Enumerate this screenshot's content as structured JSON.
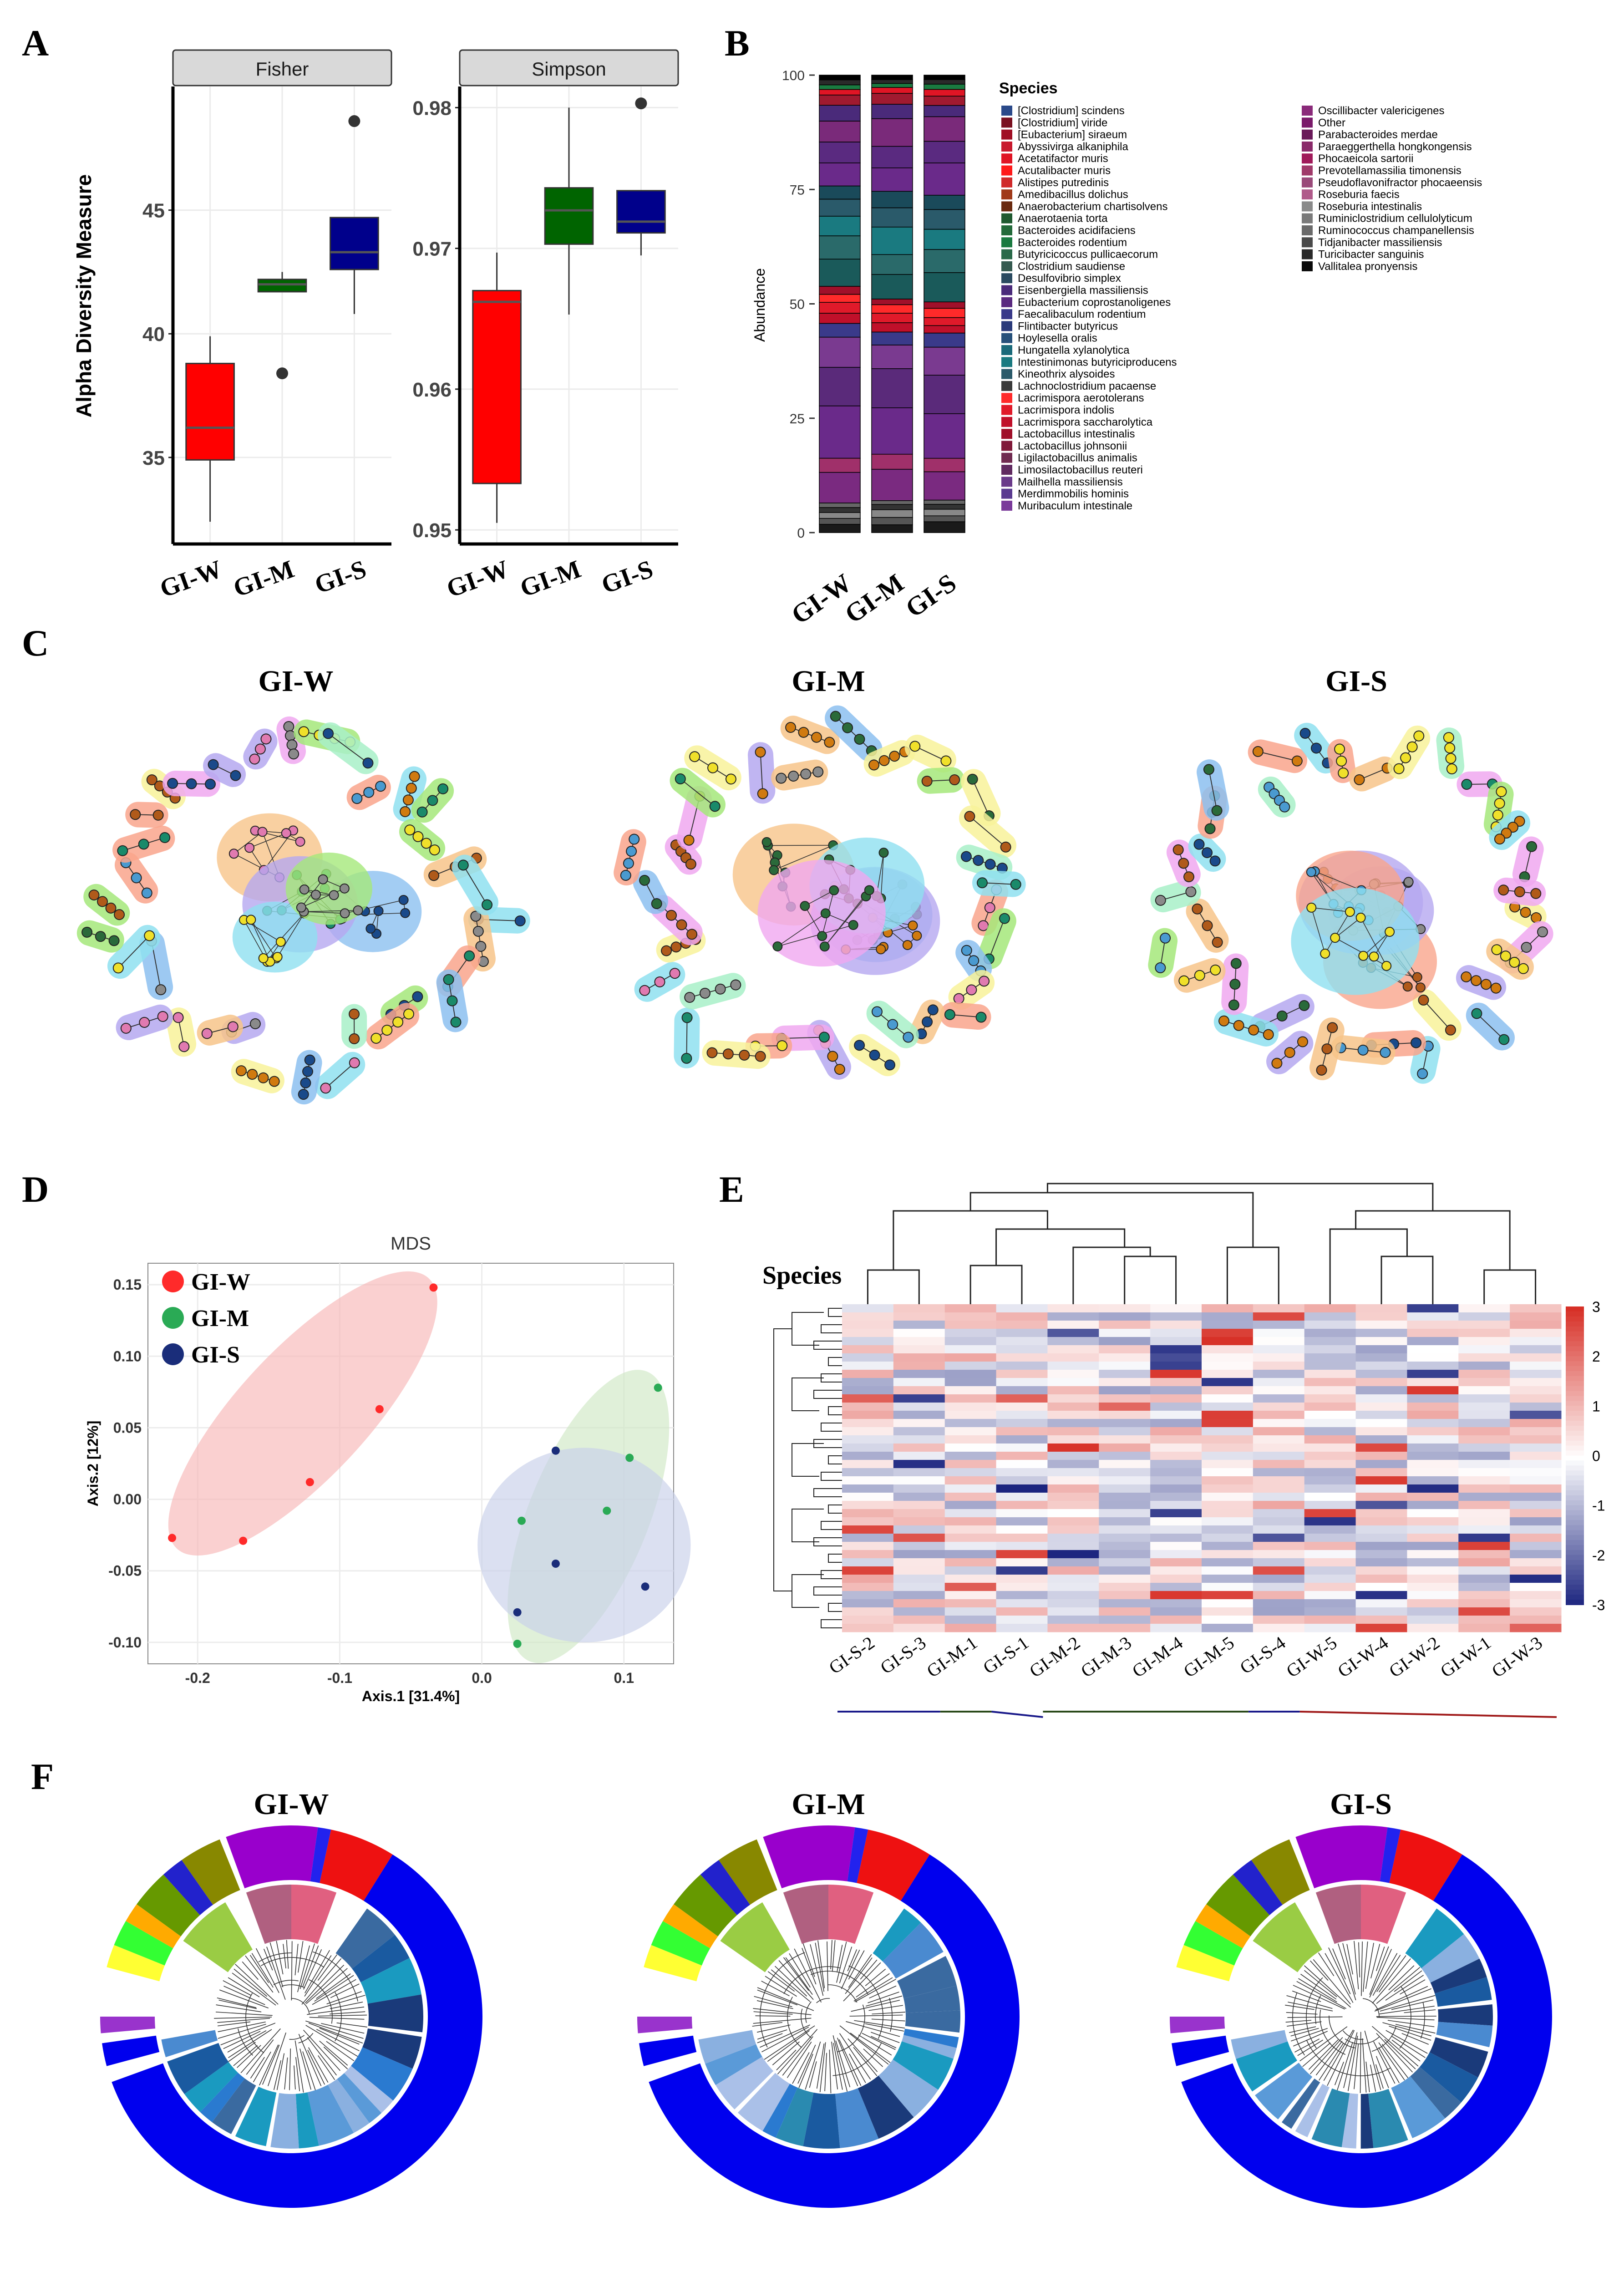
{
  "panels": {
    "A": "A",
    "B": "B",
    "C": "C",
    "D": "D",
    "E": "E",
    "F": "F"
  },
  "groups": [
    "GI-W",
    "GI-M",
    "GI-S"
  ],
  "colors": {
    "GI-W": "#ff0000",
    "GI-M": "#006400",
    "GI-S": "#00008b",
    "pca_W": "#ff2a2a",
    "pca_M": "#2aaa55",
    "pca_S": "#1a2d7a"
  },
  "chart_data": [
    {
      "panel": "A",
      "type": "box",
      "ylabel": "Alpha Diversity Measure",
      "facets": [
        {
          "strip": "Fisher",
          "ylim": [
            31.5,
            50
          ],
          "yticks": [
            35,
            40,
            45
          ],
          "boxes": [
            {
              "group": "GI-W",
              "min": 32.4,
              "q1": 34.9,
              "median": 36.2,
              "q3": 38.8,
              "max": 39.9,
              "outliers": []
            },
            {
              "group": "GI-M",
              "min": 41.7,
              "q1": 41.7,
              "median": 42.0,
              "q3": 42.2,
              "max": 42.5,
              "outliers": [
                38.4
              ]
            },
            {
              "group": "GI-S",
              "min": 40.8,
              "q1": 42.6,
              "median": 43.3,
              "q3": 44.7,
              "max": 44.7,
              "outliers": [
                48.6
              ]
            }
          ]
        },
        {
          "strip": "Simpson",
          "ylim": [
            0.949,
            0.9815
          ],
          "yticks": [
            0.95,
            0.96,
            0.97,
            0.98
          ],
          "ytick_labels": [
            "0.95",
            "0.96",
            "0.97",
            "0.98"
          ],
          "boxes": [
            {
              "group": "GI-W",
              "min": 0.9505,
              "q1": 0.9533,
              "median": 0.9662,
              "q3": 0.967,
              "max": 0.9697,
              "outliers": []
            },
            {
              "group": "GI-M",
              "min": 0.9653,
              "q1": 0.9703,
              "median": 0.9727,
              "q3": 0.9743,
              "max": 0.98,
              "outliers": []
            },
            {
              "group": "GI-S",
              "min": 0.9695,
              "q1": 0.9711,
              "median": 0.9719,
              "q3": 0.9741,
              "max": 0.9741,
              "outliers": [
                0.9803
              ]
            }
          ]
        }
      ]
    },
    {
      "panel": "B",
      "type": "bar",
      "stacked": true,
      "ylabel": "Abundance",
      "ylim": [
        0,
        100
      ],
      "yticks": [
        0,
        25,
        50,
        75,
        100
      ],
      "categories": [
        "GI-W",
        "GI-M",
        "GI-S"
      ],
      "legend_title": "Species",
      "legend_col1": [
        {
          "name": "[Clostridium] scindens",
          "color": "#2b4a8a"
        },
        {
          "name": "[Clostridium] viride",
          "color": "#7a1020"
        },
        {
          "name": "[Eubacterium] siraeum",
          "color": "#a01025"
        },
        {
          "name": "Abyssivirga alkaniphila",
          "color": "#c81a2e"
        },
        {
          "name": "Acetatifactor muris",
          "color": "#e01525"
        },
        {
          "name": "Acutalibacter muris",
          "color": "#ff1a1a"
        },
        {
          "name": "Alistipes putredinis",
          "color": "#d02a2a"
        },
        {
          "name": "Amedibacillus dolichus",
          "color": "#a03a1a"
        },
        {
          "name": "Anaerobacterium chartisolvens",
          "color": "#6a2a10"
        },
        {
          "name": "Anaerotaenia torta",
          "color": "#1f5a30"
        },
        {
          "name": "Bacteroides acidifaciens",
          "color": "#236a3a"
        },
        {
          "name": "Bacteroides rodentium",
          "color": "#1a7a40"
        },
        {
          "name": "Butyricicoccus pullicaecorum",
          "color": "#2a6a4a"
        },
        {
          "name": "Clostridium saudiense",
          "color": "#355a50"
        },
        {
          "name": "Desulfovibrio simplex",
          "color": "#2a4a60"
        },
        {
          "name": "Eisenbergiella massiliensis",
          "color": "#4a2a7a"
        },
        {
          "name": "Eubacterium coprostanoligenes",
          "color": "#5a2a80"
        },
        {
          "name": "Faecalibaculum rodentium",
          "color": "#3a3a8a"
        },
        {
          "name": "Flintibacter butyricus",
          "color": "#2a3a7a"
        },
        {
          "name": "Hoylesella oralis",
          "color": "#26507a"
        },
        {
          "name": "Hungatella xylanolytica",
          "color": "#1a6a7a"
        },
        {
          "name": "Intestinimonas butyriciproducens",
          "color": "#1a7a80"
        },
        {
          "name": "Kineothrix alysoides",
          "color": "#2a5a6a"
        },
        {
          "name": "Lachnoclostridium pacaense",
          "color": "#3a3a3a"
        },
        {
          "name": "Lacrimispora aerotolerans",
          "color": "#ff2a2a"
        },
        {
          "name": "Lacrimispora indolis",
          "color": "#e01a2a"
        },
        {
          "name": "Lacrimispora saccharolytica",
          "color": "#c0102a"
        },
        {
          "name": "Lactobacillus intestinalis",
          "color": "#a0102a"
        },
        {
          "name": "Lactobacillus johnsonii",
          "color": "#801a3a"
        },
        {
          "name": "Ligilactobacillus animalis",
          "color": "#702a50"
        },
        {
          "name": "Limosilactobacillus reuteri",
          "color": "#602a60"
        },
        {
          "name": "Mailhella massiliensis",
          "color": "#6a3a8a"
        },
        {
          "name": "Merdimmobilis hominis",
          "color": "#5a3a90"
        },
        {
          "name": "Muribaculum intestinale",
          "color": "#7a3a9a"
        }
      ],
      "legend_col2": [
        {
          "name": "Oscillibacter valericigenes",
          "color": "#8a2a7a"
        },
        {
          "name": "Other",
          "color": "#7a1a6a"
        },
        {
          "name": "Parabacteroides merdae",
          "color": "#6a1a5a"
        },
        {
          "name": "Paraeggerthella hongkongensis",
          "color": "#8a2a6a"
        },
        {
          "name": "Phocaeicola sartorii",
          "color": "#a01a5a"
        },
        {
          "name": "Prevotellamassilia timonensis",
          "color": "#a03a6a"
        },
        {
          "name": "Pseudoflavonifractor phocaeensis",
          "color": "#9a4a7a"
        },
        {
          "name": "Roseburia faecis",
          "color": "#b05a8a"
        },
        {
          "name": "Roseburia intestinalis",
          "color": "#8a8a8a"
        },
        {
          "name": "Ruminiclostridium cellulolyticum",
          "color": "#7a7a7a"
        },
        {
          "name": "Ruminococcus champanellensis",
          "color": "#6a6a6a"
        },
        {
          "name": "Tidjanibacter massiliensis",
          "color": "#4a4a4a"
        },
        {
          "name": "Turicibacter sanguinis",
          "color": "#2a2a2a"
        },
        {
          "name": "Vallitalea pronyensis",
          "color": "#0a0a0a"
        }
      ]
    },
    {
      "panel": "C",
      "type": "network",
      "titles": [
        "GI-W",
        "GI-M",
        "GI-S"
      ]
    },
    {
      "panel": "D",
      "type": "scatter",
      "title": "MDS",
      "xlabel": "Axis.1  [31.4%]",
      "ylabel": "Axis.2  [12%]",
      "xlim": [
        -0.235,
        0.135
      ],
      "ylim": [
        -0.115,
        0.165
      ],
      "xticks": [
        -0.2,
        -0.1,
        0.0,
        0.1
      ],
      "xtick_labels": [
        "-0.2",
        "-0.1",
        "0.0",
        "0.1"
      ],
      "yticks": [
        -0.1,
        -0.05,
        0.0,
        0.05,
        0.1,
        0.15
      ],
      "ytick_labels": [
        "-0.10",
        "-0.05",
        "0.00",
        "0.05",
        "0.10",
        "0.15"
      ],
      "legend": [
        {
          "name": "GI-W",
          "color": "#ff2a2a"
        },
        {
          "name": "GI-M",
          "color": "#2aaa55"
        },
        {
          "name": "GI-S",
          "color": "#1a2d7a"
        }
      ],
      "series": [
        {
          "name": "GI-W",
          "color": "#ff2a2a",
          "points": [
            [
              -0.218,
              -0.027
            ],
            [
              -0.168,
              -0.029
            ],
            [
              -0.121,
              0.012
            ],
            [
              -0.072,
              0.063
            ],
            [
              -0.034,
              0.148
            ]
          ]
        },
        {
          "name": "GI-M",
          "color": "#2aaa55",
          "points": [
            [
              0.025,
              -0.101
            ],
            [
              0.028,
              -0.015
            ],
            [
              0.088,
              -0.008
            ],
            [
              0.104,
              0.029
            ],
            [
              0.124,
              0.078
            ]
          ]
        },
        {
          "name": "GI-S",
          "color": "#1a2d7a",
          "points": [
            [
              0.025,
              -0.079
            ],
            [
              0.052,
              -0.045
            ],
            [
              0.052,
              0.034
            ],
            [
              0.115,
              -0.061
            ]
          ]
        }
      ]
    },
    {
      "panel": "E",
      "type": "heatmap",
      "row_label": "Species",
      "columns": [
        "GI-S-2",
        "GI-S-3",
        "GI-M-1",
        "GI-S-1",
        "GI-M-2",
        "GI-M-3",
        "GI-M-4",
        "GI-M-5",
        "GI-S-4",
        "GI-W-5",
        "GI-W-4",
        "GI-W-2",
        "GI-W-1",
        "GI-W-3"
      ],
      "colorbar_ticks": [
        3,
        2,
        1,
        0,
        -1,
        -2,
        -3
      ],
      "colorbar_tick_labels": [
        "3",
        "2",
        "1",
        "0",
        "-1",
        "-2",
        "-3"
      ],
      "rows": 40
    },
    {
      "panel": "F",
      "type": "circular_tree",
      "titles": [
        "GI-W",
        "GI-M",
        "GI-S"
      ]
    }
  ]
}
